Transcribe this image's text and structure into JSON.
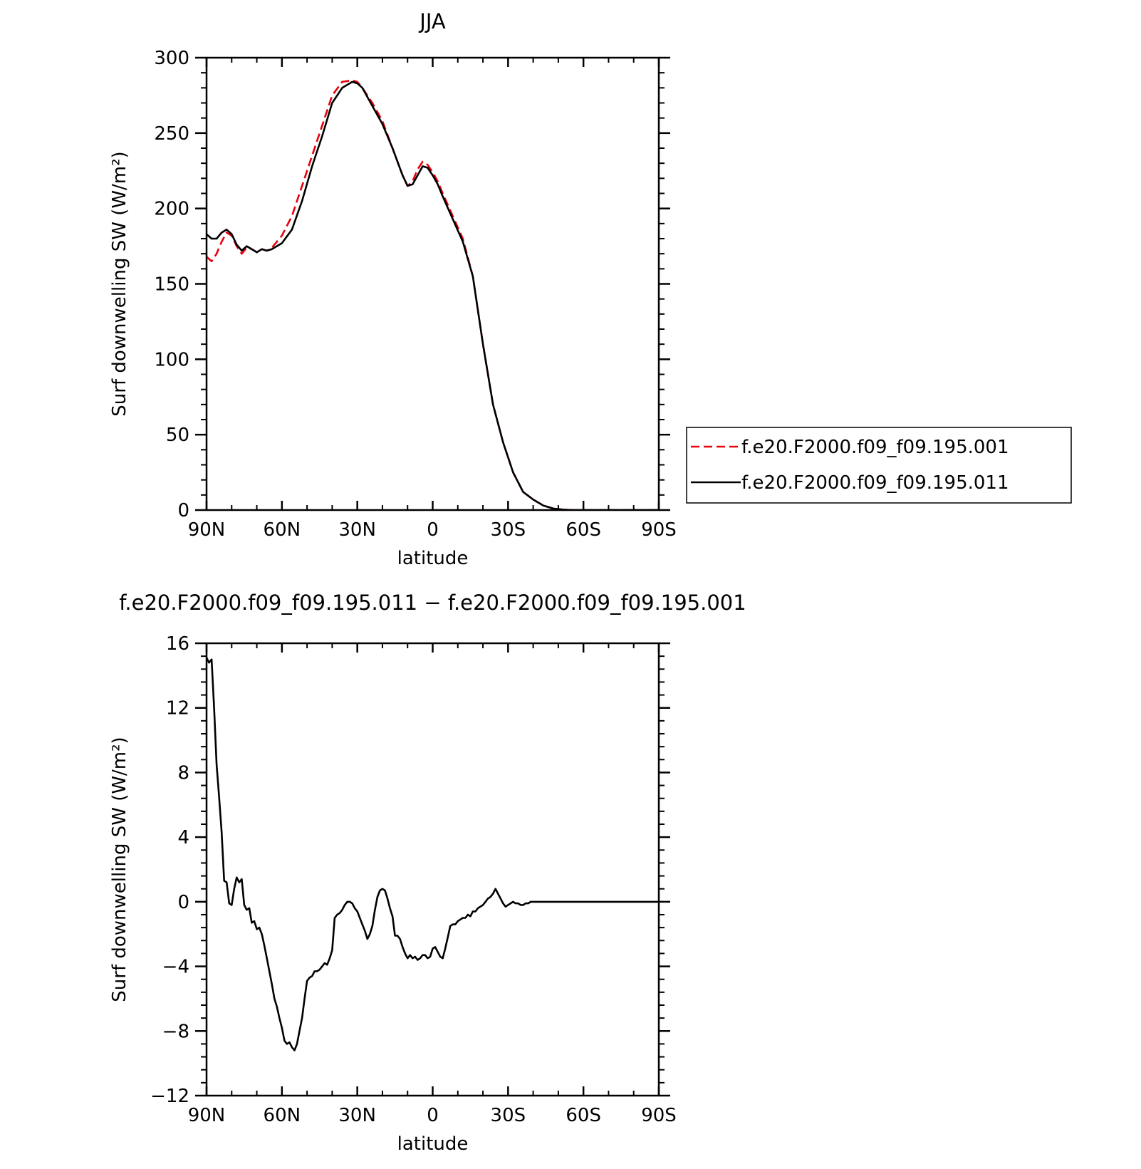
{
  "chart_data": [
    {
      "type": "line",
      "title": "JJA",
      "xlabel": "latitude",
      "ylabel": "Surf downwelling SW (W/m²)",
      "xlim": [
        90,
        -90
      ],
      "ylim": [
        0,
        300
      ],
      "xticks": [
        {
          "value": 90,
          "label": "90N"
        },
        {
          "value": 60,
          "label": "60N"
        },
        {
          "value": 30,
          "label": "30N"
        },
        {
          "value": 0,
          "label": "0"
        },
        {
          "value": -30,
          "label": "30S"
        },
        {
          "value": -60,
          "label": "60S"
        },
        {
          "value": -90,
          "label": "90S"
        }
      ],
      "yticks": [
        {
          "value": 0,
          "label": "0"
        },
        {
          "value": 50,
          "label": "50"
        },
        {
          "value": 100,
          "label": "100"
        },
        {
          "value": 150,
          "label": "150"
        },
        {
          "value": 200,
          "label": "200"
        },
        {
          "value": 250,
          "label": "250"
        },
        {
          "value": 300,
          "label": "300"
        }
      ],
      "legend": "right",
      "series": [
        {
          "name": "f.e20.F2000.f09_f09.195.001",
          "color": "#e8000b",
          "dash": "dashed",
          "x": [
            90,
            88,
            86,
            84,
            82,
            80,
            78,
            76,
            74,
            72,
            70,
            68,
            66,
            64,
            60,
            56,
            52,
            48,
            44,
            40,
            36,
            32,
            30,
            28,
            24,
            20,
            16,
            12,
            10,
            8,
            6,
            4,
            2,
            0,
            -2,
            -4,
            -8,
            -12,
            -16,
            -20,
            -24,
            -28,
            -32,
            -36,
            -40,
            -44,
            -48,
            -52,
            -56,
            -60,
            -64,
            -68,
            -72,
            -76,
            -80,
            -84,
            -88,
            -90
          ],
          "y": [
            168,
            165,
            170,
            178,
            184,
            182,
            175,
            170,
            174,
            173,
            171,
            173,
            172,
            174,
            182,
            195,
            215,
            235,
            255,
            275,
            284,
            285,
            284,
            280,
            270,
            258,
            240,
            222,
            215,
            218,
            226,
            231,
            229,
            224,
            218,
            210,
            195,
            180,
            155,
            110,
            70,
            45,
            25,
            12,
            7,
            3,
            1,
            0.3,
            0,
            0,
            0,
            0,
            0,
            0,
            0,
            0,
            0,
            0
          ]
        },
        {
          "name": "f.e20.F2000.f09_f09.195.011",
          "color": "#000000",
          "dash": "solid",
          "x": [
            90,
            88,
            86,
            84,
            82,
            80,
            78,
            76,
            74,
            72,
            70,
            68,
            66,
            64,
            60,
            56,
            52,
            48,
            44,
            40,
            36,
            32,
            30,
            28,
            24,
            20,
            16,
            12,
            10,
            8,
            6,
            4,
            2,
            0,
            -2,
            -4,
            -8,
            -12,
            -16,
            -20,
            -24,
            -28,
            -32,
            -36,
            -40,
            -44,
            -48,
            -52,
            -56,
            -60,
            -64,
            -68,
            -72,
            -76,
            -80,
            -84,
            -88,
            -90
          ],
          "y": [
            183,
            180,
            180,
            184,
            186,
            183,
            176,
            172,
            175,
            173,
            171,
            173,
            172,
            173,
            177,
            186,
            205,
            228,
            248,
            270,
            280,
            284,
            283,
            280,
            268,
            256,
            240,
            222,
            215,
            216,
            222,
            228,
            227,
            222,
            216,
            208,
            193,
            178,
            155,
            110,
            70,
            45,
            25,
            12,
            7,
            3,
            1,
            0.3,
            0,
            0,
            0,
            0,
            0,
            0,
            0,
            0,
            0,
            0
          ]
        }
      ]
    },
    {
      "type": "line",
      "title": "f.e20.F2000.f09_f09.195.011 − f.e20.F2000.f09_f09.195.001",
      "xlabel": "latitude",
      "ylabel": "Surf downwelling SW (W/m²)",
      "xlim": [
        90,
        -90
      ],
      "ylim": [
        -12,
        16
      ],
      "xticks": [
        {
          "value": 90,
          "label": "90N"
        },
        {
          "value": 60,
          "label": "60N"
        },
        {
          "value": 30,
          "label": "30N"
        },
        {
          "value": 0,
          "label": "0"
        },
        {
          "value": -30,
          "label": "30S"
        },
        {
          "value": -60,
          "label": "60S"
        },
        {
          "value": -90,
          "label": "90S"
        }
      ],
      "yticks": [
        {
          "value": -12,
          "label": "−12"
        },
        {
          "value": -8,
          "label": "−8"
        },
        {
          "value": -4,
          "label": "−4"
        },
        {
          "value": 0,
          "label": "0"
        },
        {
          "value": 4,
          "label": "4"
        },
        {
          "value": 8,
          "label": "8"
        },
        {
          "value": 12,
          "label": "12"
        },
        {
          "value": 16,
          "label": "16"
        }
      ],
      "series": [
        {
          "color": "#000000",
          "dash": "solid",
          "x": [
            90,
            89,
            88,
            87,
            86,
            85,
            84,
            83,
            82,
            81,
            80,
            79,
            78,
            77,
            76,
            75,
            74,
            73,
            72,
            71,
            70,
            69,
            68,
            67,
            66,
            65,
            64,
            63,
            62,
            61,
            60,
            59,
            58,
            57,
            56,
            55,
            54,
            53,
            52,
            51,
            50,
            49,
            48,
            47,
            46,
            45,
            44,
            43,
            42,
            41,
            40,
            39,
            38,
            37,
            36,
            35,
            34,
            33,
            32,
            31,
            30,
            29,
            28,
            27,
            26,
            25,
            24,
            23,
            22,
            21,
            20,
            19,
            18,
            17,
            16,
            15,
            14,
            13,
            12,
            11,
            10,
            9,
            8,
            7,
            6,
            5,
            4,
            3,
            2,
            1,
            0,
            -1,
            -2,
            -3,
            -4,
            -5,
            -6,
            -7,
            -8,
            -9,
            -10,
            -11,
            -12,
            -13,
            -14,
            -15,
            -16,
            -17,
            -18,
            -19,
            -20,
            -21,
            -22,
            -23,
            -24,
            -25,
            -26,
            -27,
            -28,
            -29,
            -30,
            -31,
            -32,
            -33,
            -34,
            -35,
            -36,
            -37,
            -38,
            -39,
            -40,
            -42,
            -44,
            -46,
            -48,
            -50,
            -52,
            -54,
            -56,
            -58,
            -60,
            -62,
            -64,
            -66,
            -68,
            -70,
            -72,
            -75,
            -80,
            -85,
            -90
          ],
          "y": [
            15.1,
            14.8,
            15.0,
            12.0,
            8.5,
            6.5,
            4.3,
            1.3,
            1.2,
            -0.1,
            -0.2,
            0.8,
            1.5,
            1.2,
            1.4,
            -0.2,
            -0.5,
            -0.4,
            -1.3,
            -1.2,
            -1.7,
            -1.6,
            -2.0,
            -2.7,
            -3.5,
            -4.3,
            -5.1,
            -6.0,
            -6.5,
            -7.2,
            -7.8,
            -8.6,
            -8.8,
            -8.7,
            -9.0,
            -9.2,
            -8.8,
            -8.0,
            -7.2,
            -6.0,
            -4.9,
            -4.7,
            -4.6,
            -4.3,
            -4.3,
            -4.2,
            -4.0,
            -3.8,
            -3.9,
            -3.5,
            -3.0,
            -1.0,
            -0.8,
            -0.7,
            -0.5,
            -0.2,
            0.0,
            0.0,
            -0.1,
            -0.4,
            -0.6,
            -1.0,
            -1.4,
            -1.8,
            -2.3,
            -2.0,
            -1.5,
            -0.5,
            0.3,
            0.7,
            0.8,
            0.7,
            0.2,
            -0.4,
            -0.9,
            -2.1,
            -2.1,
            -2.3,
            -2.8,
            -3.2,
            -3.5,
            -3.3,
            -3.5,
            -3.4,
            -3.6,
            -3.5,
            -3.3,
            -3.3,
            -3.5,
            -3.4,
            -2.9,
            -2.8,
            -3.1,
            -3.4,
            -3.5,
            -2.9,
            -2.2,
            -1.5,
            -1.4,
            -1.4,
            -1.2,
            -1.1,
            -1.0,
            -1.0,
            -0.8,
            -0.9,
            -0.6,
            -0.6,
            -0.4,
            -0.3,
            -0.2,
            0.0,
            0.2,
            0.3,
            0.5,
            0.8,
            0.5,
            0.2,
            -0.1,
            -0.3,
            -0.2,
            -0.1,
            0.0,
            -0.1,
            -0.1,
            -0.2,
            -0.2,
            -0.1,
            -0.1,
            0.0,
            0.0,
            0.0,
            0.0,
            0.0,
            0.0,
            0.0,
            0.0,
            0.0,
            0.0,
            0.0,
            0.0,
            0.0,
            0.0,
            0.0,
            0.0,
            0.0,
            0.0,
            0.0,
            0.0,
            0.0,
            0.0
          ]
        }
      ]
    }
  ]
}
